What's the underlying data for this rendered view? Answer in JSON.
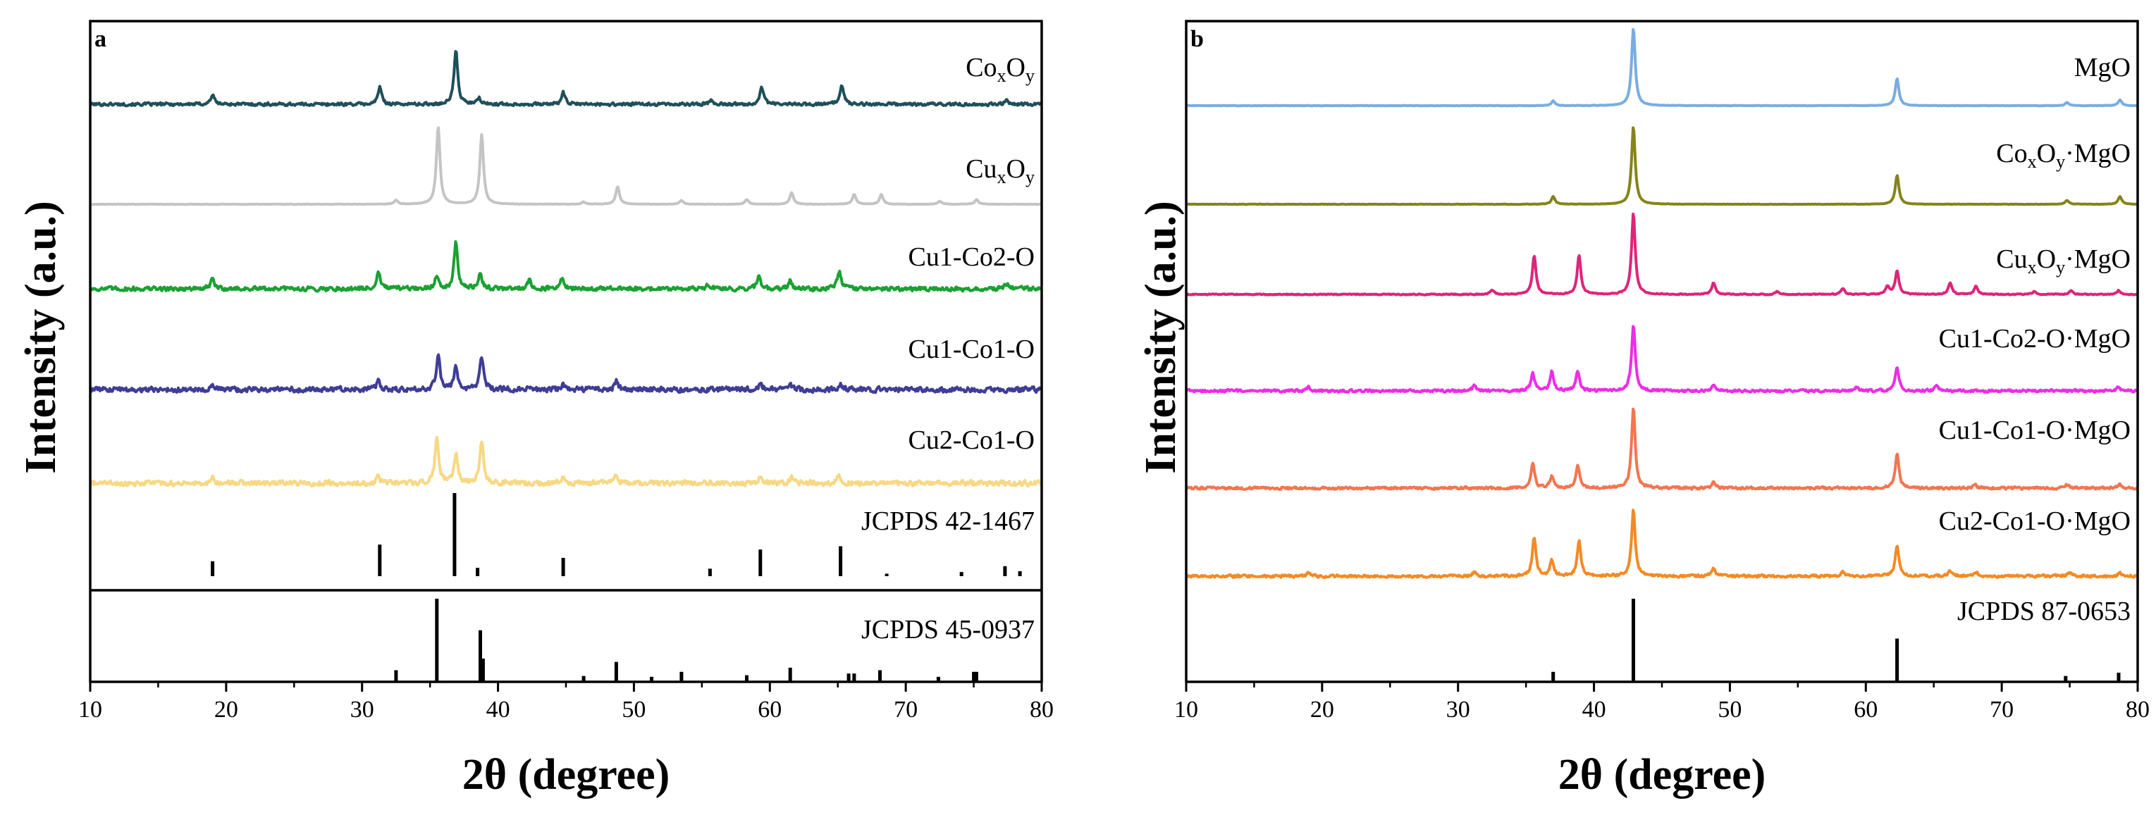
{
  "chart_data": [
    {
      "type": "line",
      "panel_label": "a",
      "xlabel": "2θ (degree)",
      "ylabel": "Intensity (a.u.)",
      "xlim": [
        10,
        80
      ],
      "x_ticks": [
        10,
        20,
        30,
        40,
        50,
        60,
        70,
        80
      ],
      "grid": false,
      "series": [
        {
          "name": "CoxOy",
          "label_main": "Co",
          "sub1": "x",
          "mid": "O",
          "sub2": "y",
          "suffix": "",
          "color": "#1f4f5a",
          "noise": 0.35,
          "peaks": [
            [
              19.0,
              2.5
            ],
            [
              31.3,
              4.5
            ],
            [
              36.9,
              14
            ],
            [
              38.6,
              1.5
            ],
            [
              44.8,
              3
            ],
            [
              55.7,
              1.2
            ],
            [
              59.4,
              4.5
            ],
            [
              65.3,
              5
            ],
            [
              77.4,
              1.2
            ]
          ]
        },
        {
          "name": "CuxOy",
          "label_main": "Cu",
          "sub1": "x",
          "mid": "O",
          "sub2": "y",
          "suffix": "",
          "color": "#c4c4c4",
          "noise": 0.05,
          "peaks": [
            [
              32.5,
              1
            ],
            [
              35.6,
              20
            ],
            [
              38.8,
              18
            ],
            [
              46.3,
              0.6
            ],
            [
              48.8,
              4.5
            ],
            [
              53.5,
              1
            ],
            [
              58.3,
              1.2
            ],
            [
              61.6,
              3
            ],
            [
              66.2,
              2.5
            ],
            [
              68.2,
              2.5
            ],
            [
              72.5,
              0.8
            ],
            [
              75.2,
              1.2
            ]
          ]
        },
        {
          "name": "Cu1-Co2-O",
          "label_main": "Cu1-Co2-O",
          "sub1": "",
          "mid": "",
          "sub2": "",
          "suffix": "",
          "color": "#1aa132",
          "noise": 0.5,
          "peaks": [
            [
              19.0,
              2.5
            ],
            [
              31.2,
              4.5
            ],
            [
              35.5,
              3.5
            ],
            [
              36.9,
              12
            ],
            [
              38.7,
              4
            ],
            [
              42.3,
              2.2
            ],
            [
              44.7,
              2.5
            ],
            [
              55.5,
              1.2
            ],
            [
              59.2,
              3.2
            ],
            [
              61.5,
              2
            ],
            [
              65.1,
              4.5
            ],
            [
              77.4,
              1.5
            ]
          ]
        },
        {
          "name": "Cu1-Co1-O",
          "label_main": "Cu1-Co1-O",
          "sub1": "",
          "mid": "",
          "sub2": "",
          "suffix": "",
          "color": "#3f3d96",
          "noise": 0.6,
          "peaks": [
            [
              19.0,
              1.2
            ],
            [
              31.2,
              2
            ],
            [
              35.6,
              9
            ],
            [
              36.9,
              6
            ],
            [
              38.8,
              8.5
            ],
            [
              44.8,
              1.2
            ],
            [
              48.7,
              2.2
            ],
            [
              59.3,
              1.5
            ],
            [
              61.5,
              1.5
            ],
            [
              65.2,
              1.5
            ]
          ]
        },
        {
          "name": "Cu2-Co1-O",
          "label_main": "Cu2-Co1-O",
          "sub1": "",
          "mid": "",
          "sub2": "",
          "suffix": "",
          "color": "#f7d884",
          "noise": 0.6,
          "peaks": [
            [
              19.0,
              1.5
            ],
            [
              31.2,
              2
            ],
            [
              35.5,
              12
            ],
            [
              36.9,
              7.5
            ],
            [
              38.8,
              11
            ],
            [
              44.8,
              1.2
            ],
            [
              48.7,
              2
            ],
            [
              59.3,
              1.5
            ],
            [
              61.6,
              1.5
            ],
            [
              65.1,
              2
            ]
          ]
        }
      ],
      "reference_patterns": [
        {
          "name": "JCPDS 42-1467",
          "color": "#000000",
          "x": [
            19.0,
            31.3,
            36.8,
            38.5,
            44.8,
            55.6,
            59.3,
            65.2,
            68.6,
            74.1,
            77.3,
            78.4
          ],
          "intensity": [
            18,
            38,
            100,
            10,
            22,
            9,
            32,
            36,
            3,
            5,
            12,
            6
          ]
        },
        {
          "name": "JCPDS 45-0937",
          "color": "#000000",
          "x": [
            32.5,
            35.5,
            38.7,
            38.9,
            46.3,
            48.7,
            51.3,
            53.5,
            58.3,
            61.5,
            65.8,
            66.2,
            68.1,
            72.4,
            75.0,
            75.2
          ],
          "intensity": [
            14,
            100,
            62,
            28,
            7,
            24,
            6,
            12,
            8,
            17,
            10,
            10,
            14,
            6,
            12,
            12
          ]
        }
      ]
    },
    {
      "type": "line",
      "panel_label": "b",
      "xlabel": "2θ (degree)",
      "ylabel": "Intensity (a.u.)",
      "xlim": [
        10,
        80
      ],
      "x_ticks": [
        10,
        20,
        30,
        40,
        50,
        60,
        70,
        80
      ],
      "grid": false,
      "series": [
        {
          "name": "MgO",
          "label_main": "MgO",
          "sub1": "",
          "mid": "",
          "sub2": "",
          "suffix": "",
          "color": "#79ace3",
          "noise": 0.05,
          "peaks": [
            [
              37.0,
              1.2
            ],
            [
              42.9,
              20
            ],
            [
              62.3,
              7
            ],
            [
              74.8,
              0.8
            ],
            [
              78.7,
              1.5
            ]
          ]
        },
        {
          "name": "CoxOy·MgO",
          "label_main": "Co",
          "sub1": "x",
          "mid": "O",
          "sub2": "y",
          "suffix": "·MgO",
          "color": "#84841a",
          "noise": 0.05,
          "peaks": [
            [
              37.0,
              2
            ],
            [
              42.9,
              20
            ],
            [
              62.3,
              7.5
            ],
            [
              74.8,
              1
            ],
            [
              78.7,
              2
            ]
          ]
        },
        {
          "name": "CuxOy·MgO",
          "label_main": "Cu",
          "sub1": "x",
          "mid": "O",
          "sub2": "y",
          "suffix": "·MgO",
          "color": "#e0247a",
          "noise": 0.12,
          "peaks": [
            [
              32.5,
              1.2
            ],
            [
              35.6,
              10
            ],
            [
              38.9,
              10
            ],
            [
              42.9,
              21
            ],
            [
              48.8,
              3
            ],
            [
              53.5,
              0.8
            ],
            [
              58.3,
              1.5
            ],
            [
              61.6,
              2
            ],
            [
              62.3,
              6
            ],
            [
              66.2,
              3
            ],
            [
              68.1,
              2.2
            ],
            [
              72.4,
              0.8
            ],
            [
              75.1,
              1
            ],
            [
              78.6,
              1
            ]
          ]
        },
        {
          "name": "Cu1-Co2-O·MgO",
          "label_main": "Cu1-Co2-O·MgO",
          "sub1": "",
          "mid": "",
          "sub2": "",
          "suffix": "",
          "color": "#ee2ce6",
          "noise": 0.3,
          "peaks": [
            [
              19.0,
              1
            ],
            [
              31.2,
              1.5
            ],
            [
              35.5,
              4.5
            ],
            [
              36.9,
              5
            ],
            [
              38.8,
              5
            ],
            [
              42.9,
              17
            ],
            [
              48.8,
              1.2
            ],
            [
              59.3,
              1
            ],
            [
              62.3,
              6
            ],
            [
              65.2,
              1.5
            ],
            [
              78.6,
              1
            ]
          ]
        },
        {
          "name": "Cu1-Co1-O·MgO",
          "label_main": "Cu1-Co1-O·MgO",
          "sub1": "",
          "mid": "",
          "sub2": "",
          "suffix": "",
          "color": "#f4754f",
          "noise": 0.3,
          "peaks": [
            [
              35.5,
              6.5
            ],
            [
              36.9,
              3
            ],
            [
              38.8,
              6
            ],
            [
              42.9,
              21
            ],
            [
              48.8,
              1.5
            ],
            [
              62.3,
              9
            ],
            [
              68.0,
              1
            ],
            [
              74.8,
              0.8
            ],
            [
              78.7,
              1
            ]
          ]
        },
        {
          "name": "Cu2-Co1-O·MgO",
          "label_main": "Cu2-Co1-O·MgO",
          "sub1": "",
          "mid": "",
          "sub2": "",
          "suffix": "",
          "color": "#f48a24",
          "noise": 0.3,
          "peaks": [
            [
              19.0,
              0.8
            ],
            [
              31.2,
              1
            ],
            [
              35.6,
              10
            ],
            [
              36.9,
              4
            ],
            [
              38.9,
              9
            ],
            [
              42.9,
              17
            ],
            [
              48.8,
              2
            ],
            [
              58.3,
              1
            ],
            [
              62.3,
              8
            ],
            [
              66.2,
              1.5
            ],
            [
              68.1,
              1.2
            ],
            [
              75.0,
              1
            ],
            [
              78.7,
              1
            ]
          ]
        }
      ],
      "reference_patterns": [
        {
          "name": "JCPDS 87-0653",
          "color": "#000000",
          "x": [
            37.0,
            42.9,
            62.3,
            74.7,
            78.6
          ],
          "intensity": [
            12,
            100,
            52,
            7,
            11
          ]
        }
      ]
    }
  ]
}
